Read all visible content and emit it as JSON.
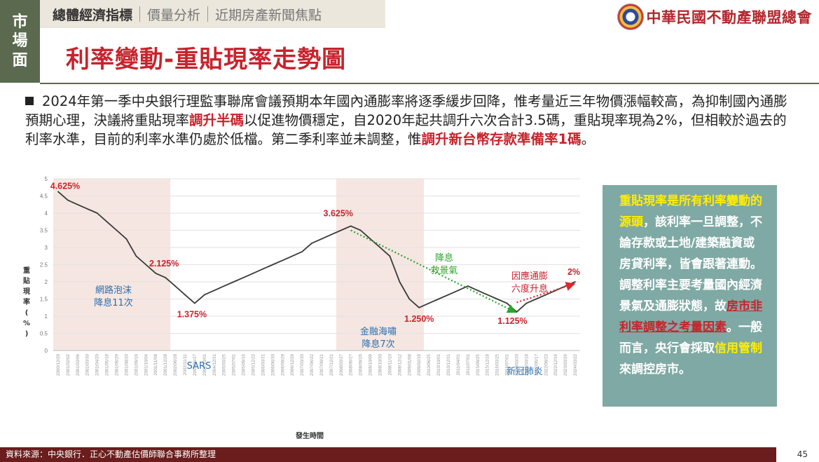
{
  "side_tab": [
    "市",
    "場",
    "面"
  ],
  "nav": {
    "items": [
      "總體經濟指標",
      "價量分析",
      "近期房產新聞焦點"
    ],
    "active": 0
  },
  "logo": {
    "text": "中華民國不動產聯盟總會"
  },
  "page_title": "利率變動-重貼現率走勢圖",
  "bullet": {
    "t1": "2024年第一季中央銀行理監事聯席會議預期本年國內通膨率將逐季緩步回降，惟考量近三年物價漲幅較高，為抑制國內通膨預期心理，決議將重貼現率",
    "h1": "調升半碼",
    "t2": "以促進物價穩定，自2020年起共調升六次合計3.5碼，重貼現率現為2%，但相較於過去的利率水準，目前的利率水準仍處於低檔。第二季利率並未調整，惟",
    "h2": "調升新台幣存款準備率1碼",
    "t3": "。"
  },
  "info_box": {
    "y1": "重貼現率是所有利率變動的源頭",
    "t1": "，該利率一旦調整，不論存款或土地/建築融資或房貸利率，皆會跟著連動。調整利率主要考量國內經濟景氣及通膨狀態，故",
    "r1": "房市非利率調整之考量因素",
    "t2": "。一般而言，央行會採取",
    "y2": "信用管制",
    "t3": "來調控房市。"
  },
  "footer": {
    "source": "資料來源：中央銀行．正心不動產估價師聯合事務所整理",
    "page": "45"
  },
  "chart_data": {
    "type": "line",
    "xlabel": "發生時間",
    "ylabel": "重貼現率(%)",
    "ylim": [
      0,
      5
    ],
    "yticks": [
      "0",
      "0.5",
      "1",
      "1.5",
      "2",
      "2.5",
      "3",
      "3.5",
      "4",
      "4.5",
      "5"
    ],
    "grid": true,
    "line_color": "#3a3a3a",
    "x_tick_labels": [
      "2000/12/29",
      "2001/02/02",
      "2001/03/06",
      "2001/03/30",
      "2001/04/20",
      "2001/05/18",
      "2001/06/29",
      "2001/08/20",
      "2001/09/19",
      "2001/10/04",
      "2001/11/08",
      "2001/12/28",
      "2002/06/28",
      "2002/11/11",
      "2003/06/27",
      "2004/10/01",
      "2004/12/31",
      "2005/03/25",
      "2005/07/01",
      "2005/09/16",
      "2005/12/23",
      "2006/03/31",
      "2006/06/30",
      "2006/09/29",
      "2006/12/29",
      "2007/03/30",
      "2007/06/22",
      "2007/09/21",
      "2007/12/21",
      "2008/03/27",
      "2008/06/27",
      "2008/09/26",
      "2008/10/09",
      "2008/10/30",
      "2008/11/10",
      "2008/12/12",
      "2009/01/08",
      "2009/02/19",
      "2010/06/25",
      "2010/10/01",
      "2010/12/31",
      "2011/04/01",
      "2011/07/01",
      "2015/09/25",
      "2015/12/18",
      "2016/03/25",
      "2016/07/01",
      "2020/03/20",
      "2022/03/18",
      "2022/06/17",
      "2022/09/23",
      "2022/12/16",
      "2023/03/24",
      "2024/03/22"
    ],
    "y": [
      4.625,
      4.375,
      4.25,
      4.125,
      4,
      3.75,
      3.5,
      3.25,
      2.75,
      2.5,
      2.25,
      2.125,
      1.875,
      1.625,
      1.375,
      1.625,
      1.75,
      1.875,
      2,
      2.125,
      2.25,
      2.375,
      2.5,
      2.625,
      2.75,
      2.875,
      3.125,
      3.25,
      3.375,
      3.5,
      3.625,
      3.5,
      3.25,
      3,
      2.75,
      2,
      1.5,
      1.25,
      1.375,
      1.5,
      1.625,
      1.75,
      1.875,
      1.75,
      1.625,
      1.5,
      1.375,
      1.125,
      1.375,
      1.5,
      1.625,
      1.75,
      1.875,
      2
    ],
    "shaded_ranges": [
      [
        0,
        11
      ],
      [
        29,
        37
      ]
    ],
    "trend_arrows": [
      {
        "from": [
          30,
          3.5
        ],
        "to": [
          47,
          1.1
        ],
        "color": "#2aa52a"
      },
      {
        "from": [
          47,
          1.4
        ],
        "to": [
          53,
          1.95
        ],
        "color": "#e0262c"
      }
    ],
    "point_labels": [
      {
        "text": "4.625%",
        "i": 0,
        "color": "#c8232c"
      },
      {
        "text": "2.125%",
        "i": 11,
        "color": "#c8232c"
      },
      {
        "text": "1.375%",
        "i": 14,
        "color": "#c8232c"
      },
      {
        "text": "3.625%",
        "i": 30,
        "color": "#c8232c"
      },
      {
        "text": "1.250%",
        "i": 37,
        "color": "#c8232c"
      },
      {
        "text": "1.125%",
        "i": 47,
        "color": "#c8232c"
      },
      {
        "text": "2%",
        "i": 53,
        "color": "#c8232c"
      }
    ],
    "annotations": [
      {
        "lines": [
          "網路泡沫",
          "降息11次"
        ],
        "color": "#2a6fb0"
      },
      {
        "lines": [
          "SARS"
        ],
        "color": "#2a6fb0"
      },
      {
        "lines": [
          "金融海嘯",
          "降息7次"
        ],
        "color": "#2a6fb0"
      },
      {
        "lines": [
          "降息",
          "救景氣"
        ],
        "color": "#2aa52a"
      },
      {
        "lines": [
          "因應通膨",
          "六度升息"
        ],
        "color": "#c8232c"
      },
      {
        "lines": [
          "新冠肺炎"
        ],
        "color": "#2a6fb0"
      }
    ]
  }
}
